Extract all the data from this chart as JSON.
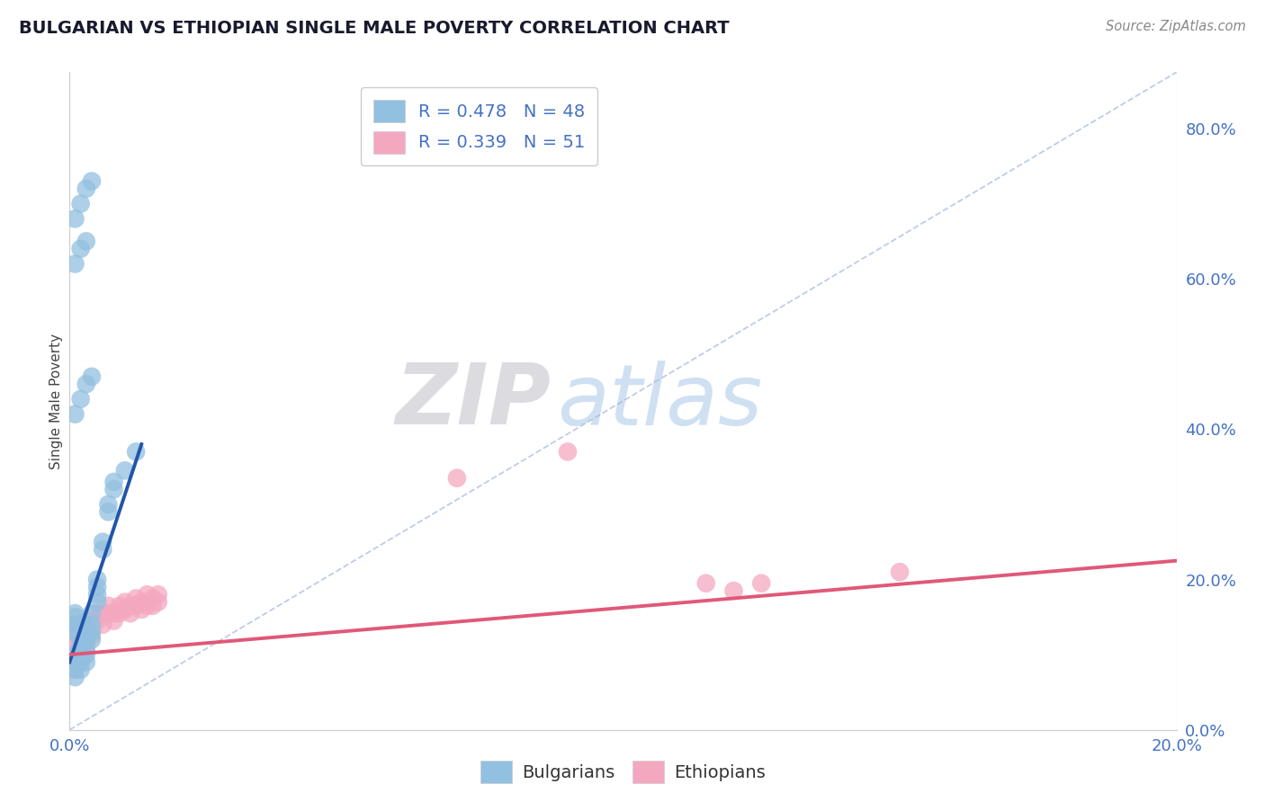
{
  "title": "BULGARIAN VS ETHIOPIAN SINGLE MALE POVERTY CORRELATION CHART",
  "source": "Source: ZipAtlas.com",
  "ylabel": "Single Male Poverty",
  "xlabel": "",
  "xlim": [
    0.0,
    0.2
  ],
  "ylim": [
    0.0,
    0.875
  ],
  "right_yticks": [
    0.0,
    0.2,
    0.4,
    0.6,
    0.8
  ],
  "right_ytick_labels": [
    "0.0%",
    "20.0%",
    "40.0%",
    "60.0%",
    "80.0%"
  ],
  "xtick_labels": [
    "0.0%",
    "20.0%"
  ],
  "bg_color": "#ffffff",
  "grid_color": "#d8d8e8",
  "watermark_zip": "ZIP",
  "watermark_atlas": "atlas",
  "legend_blue_label": "R = 0.478   N = 48",
  "legend_pink_label": "R = 0.339   N = 51",
  "legend_bottom_blue": "Bulgarians",
  "legend_bottom_pink": "Ethiopians",
  "blue_color": "#92c0e0",
  "pink_color": "#f4a8c0",
  "blue_line_color": "#2255aa",
  "pink_line_color": "#e05878",
  "blue_scatter": [
    [
      0.001,
      0.13
    ],
    [
      0.001,
      0.14
    ],
    [
      0.001,
      0.15
    ],
    [
      0.001,
      0.155
    ],
    [
      0.001,
      0.1
    ],
    [
      0.001,
      0.09
    ],
    [
      0.001,
      0.08
    ],
    [
      0.001,
      0.07
    ],
    [
      0.002,
      0.13
    ],
    [
      0.002,
      0.14
    ],
    [
      0.002,
      0.12
    ],
    [
      0.002,
      0.11
    ],
    [
      0.002,
      0.1
    ],
    [
      0.002,
      0.09
    ],
    [
      0.002,
      0.08
    ],
    [
      0.003,
      0.14
    ],
    [
      0.003,
      0.13
    ],
    [
      0.003,
      0.12
    ],
    [
      0.003,
      0.11
    ],
    [
      0.003,
      0.1
    ],
    [
      0.003,
      0.09
    ],
    [
      0.004,
      0.155
    ],
    [
      0.004,
      0.14
    ],
    [
      0.004,
      0.13
    ],
    [
      0.004,
      0.12
    ],
    [
      0.005,
      0.2
    ],
    [
      0.005,
      0.19
    ],
    [
      0.005,
      0.18
    ],
    [
      0.005,
      0.17
    ],
    [
      0.006,
      0.25
    ],
    [
      0.006,
      0.24
    ],
    [
      0.007,
      0.3
    ],
    [
      0.007,
      0.29
    ],
    [
      0.008,
      0.33
    ],
    [
      0.008,
      0.32
    ],
    [
      0.01,
      0.345
    ],
    [
      0.012,
      0.37
    ],
    [
      0.001,
      0.62
    ],
    [
      0.002,
      0.64
    ],
    [
      0.003,
      0.65
    ],
    [
      0.001,
      0.68
    ],
    [
      0.002,
      0.7
    ],
    [
      0.003,
      0.72
    ],
    [
      0.004,
      0.73
    ],
    [
      0.001,
      0.42
    ],
    [
      0.002,
      0.44
    ],
    [
      0.003,
      0.46
    ],
    [
      0.004,
      0.47
    ]
  ],
  "pink_scatter": [
    [
      0.001,
      0.14
    ],
    [
      0.001,
      0.13
    ],
    [
      0.001,
      0.12
    ],
    [
      0.001,
      0.11
    ],
    [
      0.001,
      0.1
    ],
    [
      0.001,
      0.09
    ],
    [
      0.001,
      0.08
    ],
    [
      0.002,
      0.14
    ],
    [
      0.002,
      0.13
    ],
    [
      0.002,
      0.12
    ],
    [
      0.002,
      0.11
    ],
    [
      0.002,
      0.1
    ],
    [
      0.002,
      0.09
    ],
    [
      0.003,
      0.145
    ],
    [
      0.003,
      0.135
    ],
    [
      0.003,
      0.125
    ],
    [
      0.003,
      0.115
    ],
    [
      0.003,
      0.105
    ],
    [
      0.004,
      0.145
    ],
    [
      0.004,
      0.135
    ],
    [
      0.004,
      0.125
    ],
    [
      0.005,
      0.155
    ],
    [
      0.005,
      0.145
    ],
    [
      0.006,
      0.155
    ],
    [
      0.006,
      0.14
    ],
    [
      0.007,
      0.165
    ],
    [
      0.007,
      0.155
    ],
    [
      0.008,
      0.155
    ],
    [
      0.008,
      0.145
    ],
    [
      0.009,
      0.165
    ],
    [
      0.009,
      0.155
    ],
    [
      0.01,
      0.17
    ],
    [
      0.01,
      0.16
    ],
    [
      0.011,
      0.165
    ],
    [
      0.011,
      0.155
    ],
    [
      0.012,
      0.175
    ],
    [
      0.012,
      0.165
    ],
    [
      0.013,
      0.17
    ],
    [
      0.013,
      0.16
    ],
    [
      0.014,
      0.18
    ],
    [
      0.014,
      0.165
    ],
    [
      0.015,
      0.175
    ],
    [
      0.015,
      0.165
    ],
    [
      0.016,
      0.18
    ],
    [
      0.016,
      0.17
    ],
    [
      0.07,
      0.335
    ],
    [
      0.09,
      0.37
    ],
    [
      0.115,
      0.195
    ],
    [
      0.12,
      0.185
    ],
    [
      0.125,
      0.195
    ],
    [
      0.15,
      0.21
    ]
  ],
  "blue_line_x": [
    0.0,
    0.013
  ],
  "blue_line_y": [
    0.09,
    0.38
  ],
  "pink_line_x": [
    0.0,
    0.2
  ],
  "pink_line_y": [
    0.1,
    0.225
  ],
  "diag_line_x": [
    0.0,
    0.2
  ],
  "diag_line_y": [
    0.0,
    0.875
  ]
}
